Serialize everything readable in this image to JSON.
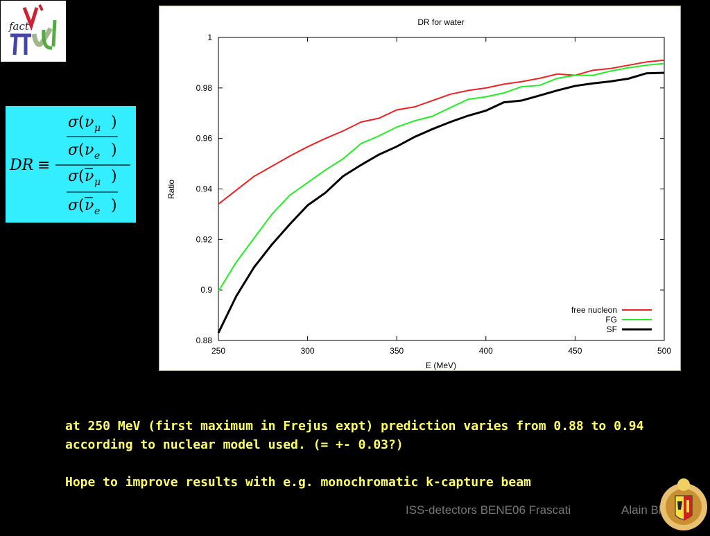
{
  "logo": {
    "text": "fact"
  },
  "formula": {
    "lhs": "DR",
    "equiv": "≡"
  },
  "chart_data": {
    "type": "line",
    "title": "DR for water",
    "xlabel": "E (MeV)",
    "ylabel": "Ratio",
    "xlim": [
      250,
      500
    ],
    "ylim": [
      0.88,
      1
    ],
    "xticks": [
      250,
      300,
      350,
      400,
      450,
      500
    ],
    "xtick_labels": [
      "250",
      "300",
      "350",
      "400",
      "450",
      "500"
    ],
    "yticks": [
      0.88,
      0.9,
      0.92,
      0.94,
      0.96,
      0.98,
      1
    ],
    "ytick_labels": [
      "0.88",
      "0.9",
      "0.92",
      "0.94",
      "0.96",
      "0.98",
      "1"
    ],
    "grid": false,
    "legend_position": "bottom-right",
    "series": [
      {
        "name": "free nucleon",
        "color": "#ee2222",
        "x": [
          250,
          260,
          270,
          280,
          290,
          300,
          310,
          320,
          330,
          340,
          350,
          360,
          370,
          380,
          390,
          400,
          410,
          420,
          430,
          440,
          450,
          460,
          470,
          480,
          490,
          500
        ],
        "y": [
          0.934,
          0.9395,
          0.945,
          0.949,
          0.953,
          0.9567,
          0.96,
          0.963,
          0.9665,
          0.968,
          0.9713,
          0.9725,
          0.975,
          0.9775,
          0.979,
          0.98,
          0.9815,
          0.9825,
          0.9838,
          0.9855,
          0.985,
          0.987,
          0.9877,
          0.989,
          0.9903,
          0.991
        ]
      },
      {
        "name": "FG",
        "color": "#22ee22",
        "x": [
          250,
          260,
          270,
          280,
          290,
          300,
          310,
          320,
          330,
          340,
          350,
          360,
          370,
          380,
          390,
          400,
          410,
          420,
          430,
          440,
          450,
          460,
          470,
          480,
          490,
          500
        ],
        "y": [
          0.8995,
          0.911,
          0.9205,
          0.93,
          0.9375,
          0.9425,
          0.9475,
          0.952,
          0.958,
          0.961,
          0.9645,
          0.967,
          0.9688,
          0.9722,
          0.9755,
          0.9765,
          0.978,
          0.9805,
          0.981,
          0.9838,
          0.985,
          0.985,
          0.9867,
          0.988,
          0.989,
          0.9897
        ]
      },
      {
        "name": "SF",
        "color": "#000000",
        "x": [
          250,
          260,
          270,
          280,
          290,
          300,
          310,
          320,
          330,
          340,
          350,
          360,
          370,
          380,
          390,
          400,
          410,
          420,
          430,
          440,
          450,
          460,
          470,
          480,
          490,
          500
        ],
        "y": [
          0.883,
          0.8975,
          0.909,
          0.918,
          0.926,
          0.9335,
          0.9385,
          0.9451,
          0.9495,
          0.9536,
          0.9568,
          0.9606,
          0.9637,
          0.9665,
          0.969,
          0.971,
          0.9743,
          0.975,
          0.977,
          0.979,
          0.9808,
          0.9818,
          0.9826,
          0.9837,
          0.9858,
          0.986
        ]
      }
    ]
  },
  "text": {
    "line1": "at 250 MeV (first maximum in Frejus expt) prediction varies from 0.88 to 0.94",
    "line2": "according to nuclear model used. (= +- 0.03?)",
    "line3": "Hope to improve results with e.g. monochromatic k-capture beam"
  },
  "footer": {
    "conference": "ISS-detectors  BENE06 Frascati",
    "author": "Alain Blondel"
  }
}
